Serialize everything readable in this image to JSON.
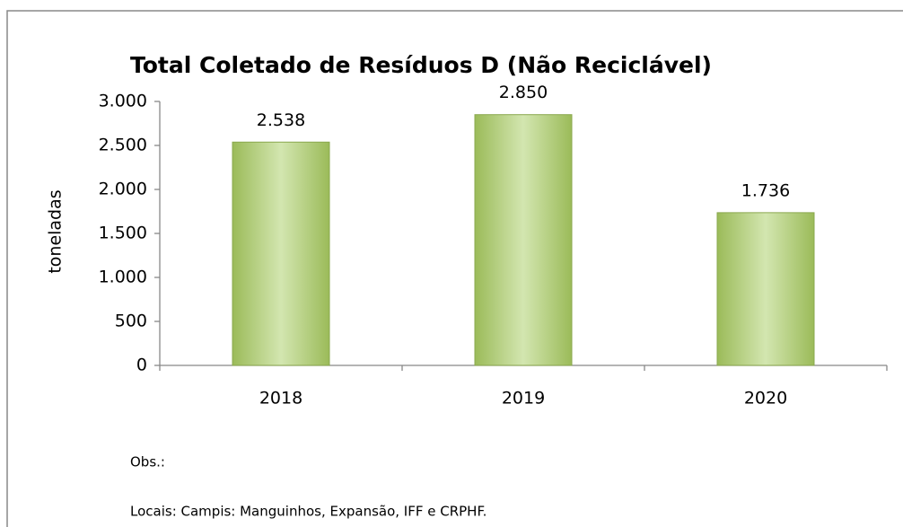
{
  "chart_data": {
    "type": "bar",
    "title": "Total Coletado de Resíduos D (Não Reciclável)",
    "y_label": "toneladas",
    "categories": [
      "2018",
      "2019",
      "2020"
    ],
    "values": [
      2538,
      2850,
      1736
    ],
    "value_labels": [
      "2.538",
      "2.850",
      "1.736"
    ],
    "color": "#9bbb59",
    "ylim": [
      0,
      3000
    ],
    "yticks": [
      0,
      {
        "value": 500,
        "label": "500"
      },
      {
        "value": 1000,
        "label": "1.000"
      },
      {
        "value": 1500,
        "label": "1.500"
      },
      {
        "value": 2000,
        "label": "2.000"
      },
      {
        "value": 2500,
        "label": "2.500"
      },
      {
        "value": 3000,
        "label": "3.000"
      }
    ],
    "grid": false,
    "notes": [
      "Obs.:",
      "Locais: Campis: Manguinhos, Expansão,  IFF e CRPHF."
    ]
  }
}
